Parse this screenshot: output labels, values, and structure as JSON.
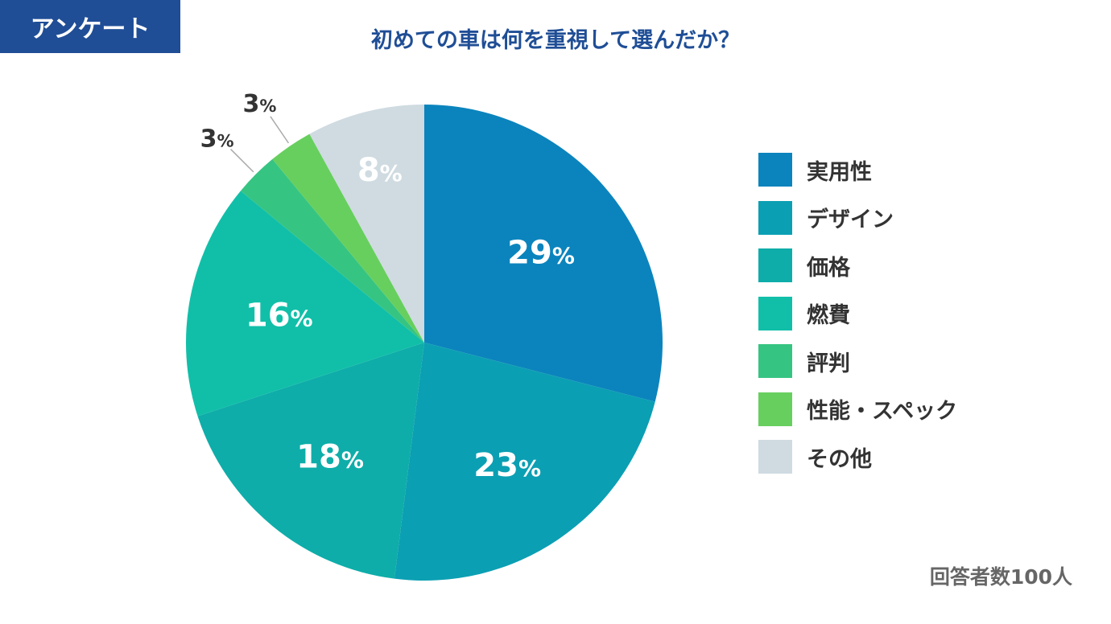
{
  "tag": "アンケート",
  "chart_data": {
    "type": "pie",
    "title": "初めての車は何を重視して選んだか？",
    "categories": [
      "実用性",
      "デザイン",
      "価格",
      "燃費",
      "評判",
      "性能・スペック",
      "その他"
    ],
    "values": [
      29,
      23,
      18,
      16,
      3,
      3,
      8
    ],
    "labels": [
      "29",
      "23",
      "18",
      "16",
      "3",
      "3",
      "8"
    ],
    "unit": "%",
    "colors": [
      "#0b84bd",
      "#0b9fb3",
      "#0eada9",
      "#11bfa8",
      "#36c482",
      "#67cf5e",
      "#cfdbe1"
    ],
    "legend_position": "right",
    "note": "回答者数100人"
  }
}
